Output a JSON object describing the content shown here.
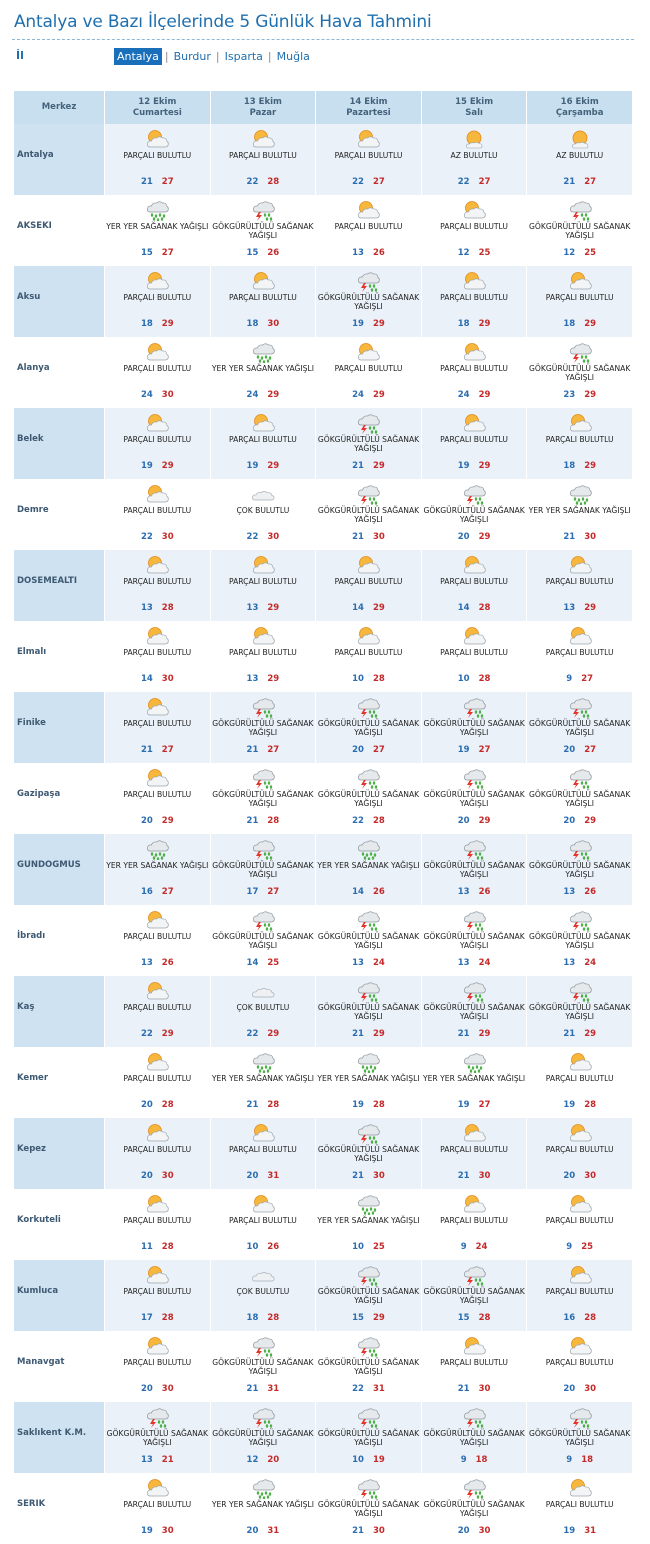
{
  "page": {
    "title": "Antalya ve Bazı İlçelerinde 5 Günlük Hava Tahmini",
    "il_label": "İl",
    "provinces": [
      {
        "label": "Antalya",
        "active": true
      },
      {
        "label": "Burdur",
        "active": false
      },
      {
        "label": "Isparta",
        "active": false
      },
      {
        "label": "Muğla",
        "active": false
      }
    ]
  },
  "table": {
    "merkez_header": "Merkez",
    "days": [
      {
        "date": "12 Ekim",
        "weekday": "Cumartesi"
      },
      {
        "date": "13 Ekim",
        "weekday": "Pazar"
      },
      {
        "date": "14 Ekim",
        "weekday": "Pazartesi"
      },
      {
        "date": "15 Ekim",
        "weekday": "Salı"
      },
      {
        "date": "16 Ekim",
        "weekday": "Çarşamba"
      }
    ],
    "conditions": {
      "PB": {
        "text": "PARÇALI BULUTLU",
        "icon": "partly-cloudy-icon"
      },
      "AB": {
        "text": "AZ BULUTLU",
        "icon": "mostly-sunny-icon"
      },
      "CB": {
        "text": "ÇOK BULUTLU",
        "icon": "cloudy-icon"
      },
      "YS": {
        "text": "YER YER SAĞANAK YAĞIŞLI",
        "icon": "showers-icon"
      },
      "GS": {
        "text": "GÖKGÜRÜLTÜLÜ SAĞANAK YAĞIŞLI",
        "icon": "thunderstorm-icon"
      }
    },
    "rows": [
      {
        "name": "Antalya",
        "days": [
          [
            "PB",
            21,
            27
          ],
          [
            "PB",
            22,
            28
          ],
          [
            "PB",
            22,
            27
          ],
          [
            "AB",
            22,
            27
          ],
          [
            "AB",
            21,
            27
          ]
        ]
      },
      {
        "name": "AKSEKI",
        "days": [
          [
            "YS",
            15,
            27
          ],
          [
            "GS",
            15,
            26
          ],
          [
            "PB",
            13,
            26
          ],
          [
            "PB",
            12,
            25
          ],
          [
            "GS",
            12,
            25
          ]
        ]
      },
      {
        "name": "Aksu",
        "days": [
          [
            "PB",
            18,
            29
          ],
          [
            "PB",
            18,
            30
          ],
          [
            "GS",
            19,
            29
          ],
          [
            "PB",
            18,
            29
          ],
          [
            "PB",
            18,
            29
          ]
        ]
      },
      {
        "name": "Alanya",
        "days": [
          [
            "PB",
            24,
            30
          ],
          [
            "YS",
            24,
            29
          ],
          [
            "PB",
            24,
            29
          ],
          [
            "PB",
            24,
            29
          ],
          [
            "GS",
            23,
            29
          ]
        ]
      },
      {
        "name": "Belek",
        "days": [
          [
            "PB",
            19,
            29
          ],
          [
            "PB",
            19,
            29
          ],
          [
            "GS",
            21,
            29
          ],
          [
            "PB",
            19,
            29
          ],
          [
            "PB",
            18,
            29
          ]
        ]
      },
      {
        "name": "Demre",
        "days": [
          [
            "PB",
            22,
            30
          ],
          [
            "CB",
            22,
            30
          ],
          [
            "GS",
            21,
            30
          ],
          [
            "GS",
            20,
            29
          ],
          [
            "YS",
            21,
            30
          ]
        ]
      },
      {
        "name": "DOSEMEALTI",
        "days": [
          [
            "PB",
            13,
            28
          ],
          [
            "PB",
            13,
            29
          ],
          [
            "PB",
            14,
            29
          ],
          [
            "PB",
            14,
            28
          ],
          [
            "PB",
            13,
            29
          ]
        ]
      },
      {
        "name": "Elmalı",
        "days": [
          [
            "PB",
            14,
            30
          ],
          [
            "PB",
            13,
            29
          ],
          [
            "PB",
            10,
            28
          ],
          [
            "PB",
            10,
            28
          ],
          [
            "PB",
            9,
            27
          ]
        ]
      },
      {
        "name": "Finike",
        "days": [
          [
            "PB",
            21,
            27
          ],
          [
            "GS",
            21,
            27
          ],
          [
            "GS",
            20,
            27
          ],
          [
            "GS",
            19,
            27
          ],
          [
            "GS",
            20,
            27
          ]
        ]
      },
      {
        "name": "Gazipaşa",
        "days": [
          [
            "PB",
            20,
            29
          ],
          [
            "GS",
            21,
            28
          ],
          [
            "GS",
            22,
            28
          ],
          [
            "GS",
            20,
            29
          ],
          [
            "GS",
            20,
            29
          ]
        ]
      },
      {
        "name": "GUNDOGMUS",
        "days": [
          [
            "YS",
            16,
            27
          ],
          [
            "GS",
            17,
            27
          ],
          [
            "YS",
            14,
            26
          ],
          [
            "GS",
            13,
            26
          ],
          [
            "GS",
            13,
            26
          ]
        ]
      },
      {
        "name": "İbradı",
        "days": [
          [
            "PB",
            13,
            26
          ],
          [
            "GS",
            14,
            25
          ],
          [
            "GS",
            13,
            24
          ],
          [
            "GS",
            13,
            24
          ],
          [
            "GS",
            13,
            24
          ]
        ]
      },
      {
        "name": "Kaş",
        "days": [
          [
            "PB",
            22,
            29
          ],
          [
            "CB",
            22,
            29
          ],
          [
            "GS",
            21,
            29
          ],
          [
            "GS",
            21,
            29
          ],
          [
            "GS",
            21,
            29
          ]
        ]
      },
      {
        "name": "Kemer",
        "days": [
          [
            "PB",
            20,
            28
          ],
          [
            "YS",
            21,
            28
          ],
          [
            "YS",
            19,
            28
          ],
          [
            "YS",
            19,
            27
          ],
          [
            "PB",
            19,
            28
          ]
        ]
      },
      {
        "name": "Kepez",
        "days": [
          [
            "PB",
            20,
            30
          ],
          [
            "PB",
            20,
            31
          ],
          [
            "GS",
            21,
            30
          ],
          [
            "PB",
            21,
            30
          ],
          [
            "PB",
            20,
            30
          ]
        ]
      },
      {
        "name": "Korkuteli",
        "days": [
          [
            "PB",
            11,
            28
          ],
          [
            "PB",
            10,
            26
          ],
          [
            "YS",
            10,
            25
          ],
          [
            "PB",
            9,
            24
          ],
          [
            "PB",
            9,
            25
          ]
        ]
      },
      {
        "name": "Kumluca",
        "days": [
          [
            "PB",
            17,
            28
          ],
          [
            "CB",
            18,
            28
          ],
          [
            "GS",
            15,
            29
          ],
          [
            "GS",
            15,
            28
          ],
          [
            "PB",
            16,
            28
          ]
        ]
      },
      {
        "name": "Manavgat",
        "days": [
          [
            "PB",
            20,
            30
          ],
          [
            "GS",
            21,
            31
          ],
          [
            "GS",
            22,
            31
          ],
          [
            "PB",
            21,
            30
          ],
          [
            "PB",
            20,
            30
          ]
        ]
      },
      {
        "name": "Saklıkent K.M.",
        "days": [
          [
            "GS",
            13,
            21
          ],
          [
            "GS",
            12,
            20
          ],
          [
            "GS",
            10,
            19
          ],
          [
            "GS",
            9,
            18
          ],
          [
            "GS",
            9,
            18
          ]
        ]
      },
      {
        "name": "SERIK",
        "days": [
          [
            "PB",
            19,
            30
          ],
          [
            "YS",
            20,
            31
          ],
          [
            "GS",
            21,
            30
          ],
          [
            "GS",
            20,
            30
          ],
          [
            "PB",
            19,
            31
          ]
        ]
      }
    ]
  },
  "colors": {
    "title": "#1f6fae",
    "header_bg": "#c8dff0",
    "shade_bg": "#eaf1f8",
    "name_shade_bg": "#cfe2f1",
    "temp_min": "#2a6db1",
    "temp_max": "#c52a2a",
    "active_tab": "#1a6fba"
  }
}
